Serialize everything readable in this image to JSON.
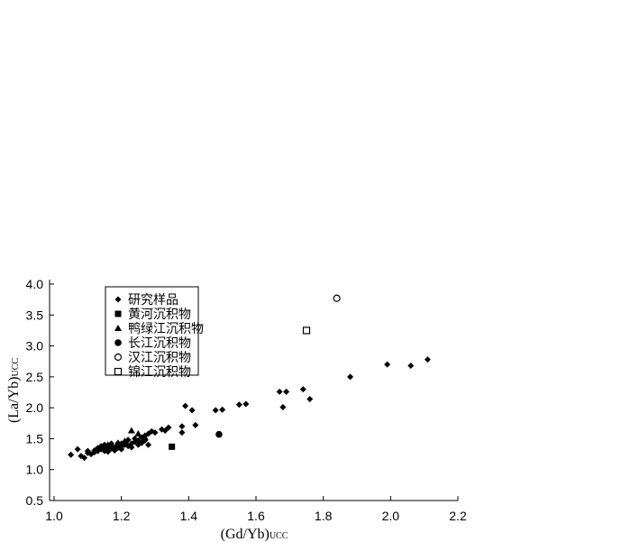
{
  "chart_data": {
    "type": "scatter",
    "xlim": [
      1.0,
      2.2
    ],
    "ylim": [
      0.5,
      4.0
    ],
    "xticks": [
      "1.0",
      "1.2",
      "1.4",
      "1.6",
      "1.8",
      "2.0",
      "2.2"
    ],
    "yticks": [
      "0.5",
      "1.0",
      "1.5",
      "2.0",
      "2.5",
      "3.0",
      "3.5",
      "4.0"
    ],
    "xlabel": "(Gd/Yb)",
    "xlabel_sub": "UCC",
    "ylabel": "(La/Yb)",
    "ylabel_sub": "UCC",
    "grid": false,
    "legend_position": "top-left",
    "series": [
      {
        "name": "研究样品",
        "marker": "diamond",
        "points": [
          [
            1.05,
            1.24
          ],
          [
            1.07,
            1.33
          ],
          [
            1.08,
            1.22
          ],
          [
            1.09,
            1.19
          ],
          [
            1.1,
            1.27
          ],
          [
            1.1,
            1.3
          ],
          [
            1.11,
            1.25
          ],
          [
            1.12,
            1.31
          ],
          [
            1.12,
            1.28
          ],
          [
            1.13,
            1.35
          ],
          [
            1.13,
            1.3
          ],
          [
            1.14,
            1.33
          ],
          [
            1.14,
            1.38
          ],
          [
            1.15,
            1.3
          ],
          [
            1.15,
            1.36
          ],
          [
            1.15,
            1.4
          ],
          [
            1.16,
            1.33
          ],
          [
            1.16,
            1.29
          ],
          [
            1.17,
            1.38
          ],
          [
            1.17,
            1.34
          ],
          [
            1.17,
            1.42
          ],
          [
            1.18,
            1.36
          ],
          [
            1.18,
            1.31
          ],
          [
            1.19,
            1.39
          ],
          [
            1.19,
            1.35
          ],
          [
            1.19,
            1.43
          ],
          [
            1.2,
            1.37
          ],
          [
            1.2,
            1.42
          ],
          [
            1.2,
            1.33
          ],
          [
            1.21,
            1.4
          ],
          [
            1.21,
            1.45
          ],
          [
            1.22,
            1.38
          ],
          [
            1.22,
            1.48
          ],
          [
            1.23,
            1.42
          ],
          [
            1.23,
            1.36
          ],
          [
            1.24,
            1.45
          ],
          [
            1.24,
            1.5
          ],
          [
            1.25,
            1.4
          ],
          [
            1.25,
            1.47
          ],
          [
            1.26,
            1.52
          ],
          [
            1.26,
            1.43
          ],
          [
            1.27,
            1.55
          ],
          [
            1.27,
            1.47
          ],
          [
            1.28,
            1.58
          ],
          [
            1.28,
            1.4
          ],
          [
            1.29,
            1.62
          ],
          [
            1.3,
            1.6
          ],
          [
            1.32,
            1.65
          ],
          [
            1.33,
            1.63
          ],
          [
            1.34,
            1.68
          ],
          [
            1.38,
            1.7
          ],
          [
            1.38,
            1.6
          ],
          [
            1.39,
            2.03
          ],
          [
            1.41,
            1.96
          ],
          [
            1.42,
            1.72
          ],
          [
            1.48,
            1.96
          ],
          [
            1.5,
            1.97
          ],
          [
            1.55,
            2.05
          ],
          [
            1.57,
            2.06
          ],
          [
            1.67,
            2.26
          ],
          [
            1.68,
            2.01
          ],
          [
            1.69,
            2.26
          ],
          [
            1.74,
            2.3
          ],
          [
            1.76,
            2.14
          ],
          [
            1.88,
            2.5
          ],
          [
            1.99,
            2.7
          ],
          [
            2.06,
            2.68
          ],
          [
            2.11,
            2.78
          ]
        ]
      },
      {
        "name": "黄河沉积物",
        "marker": "square",
        "points": [
          [
            1.35,
            1.37
          ]
        ]
      },
      {
        "name": "鸭绿江沉积物",
        "marker": "triangle",
        "points": [
          [
            1.16,
            1.4
          ],
          [
            1.19,
            1.43
          ],
          [
            1.21,
            1.46
          ],
          [
            1.23,
            1.63
          ],
          [
            1.25,
            1.58
          ],
          [
            1.27,
            1.52
          ]
        ]
      },
      {
        "name": "长江沉积物",
        "marker": "circle",
        "points": [
          [
            1.49,
            1.57
          ]
        ]
      },
      {
        "name": "汉江沉积物",
        "marker": "open-circle",
        "points": [
          [
            1.84,
            3.77
          ]
        ]
      },
      {
        "name": "锦江沉积物",
        "marker": "open-square",
        "points": [
          [
            1.75,
            3.25
          ]
        ]
      }
    ]
  }
}
